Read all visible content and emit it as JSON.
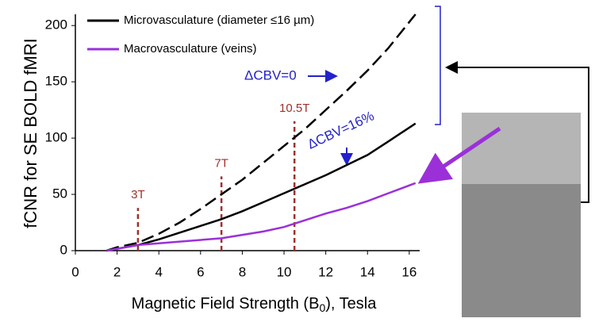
{
  "chart_data": {
    "type": "line",
    "xlabel_parts": [
      "Magnetic Field Strength (B",
      "0",
      "), Tesla"
    ],
    "ylabel": "fCNR for SE BOLD fMRI",
    "xlim": [
      0,
      16.5
    ],
    "ylim": [
      0,
      210
    ],
    "xticks": [
      0,
      2,
      4,
      6,
      8,
      10,
      12,
      14,
      16
    ],
    "yticks": [
      0,
      50,
      100,
      150,
      200
    ],
    "series": [
      {
        "name": "Microvasculature (diameter ≤16 µm)",
        "color": "#000000",
        "dashed": true,
        "legend": false,
        "x": [
          1.5,
          2,
          3,
          4,
          5,
          6,
          7,
          8,
          9,
          10,
          11,
          12,
          13,
          14,
          15,
          16.3
        ],
        "values": [
          0,
          3,
          7,
          15,
          25,
          37,
          50,
          63,
          78,
          93,
          108,
          125,
          142,
          160,
          180,
          210
        ]
      },
      {
        "name": "Microvasculature (diameter ≤16 µm)",
        "color": "#000000",
        "dashed": false,
        "legend": true,
        "x": [
          1.5,
          3,
          4,
          5,
          6,
          7,
          8,
          9,
          10,
          11,
          12,
          13,
          14,
          15,
          16.3
        ],
        "values": [
          0,
          5,
          10,
          16,
          22,
          28,
          35,
          43,
          51,
          59,
          67,
          76,
          85,
          97,
          113
        ]
      },
      {
        "name": "Macrovasculature (veins)",
        "color": "#9b30d9",
        "dashed": false,
        "legend": true,
        "x": [
          1.5,
          3,
          5,
          7,
          8,
          9,
          10,
          11,
          12,
          13,
          14,
          15,
          16.3
        ],
        "values": [
          0,
          5,
          8,
          11,
          14,
          17,
          21,
          27,
          33,
          38,
          44,
          51,
          60
        ]
      }
    ],
    "markers": [
      {
        "x": 3,
        "top": 38,
        "label": "3T"
      },
      {
        "x": 7,
        "top": 66,
        "label": "7T"
      },
      {
        "x": 10.5,
        "top": 115,
        "label": "10.5T"
      }
    ],
    "annotations": [
      "ΔCBV=0",
      "ΔCBV=16%"
    ]
  }
}
